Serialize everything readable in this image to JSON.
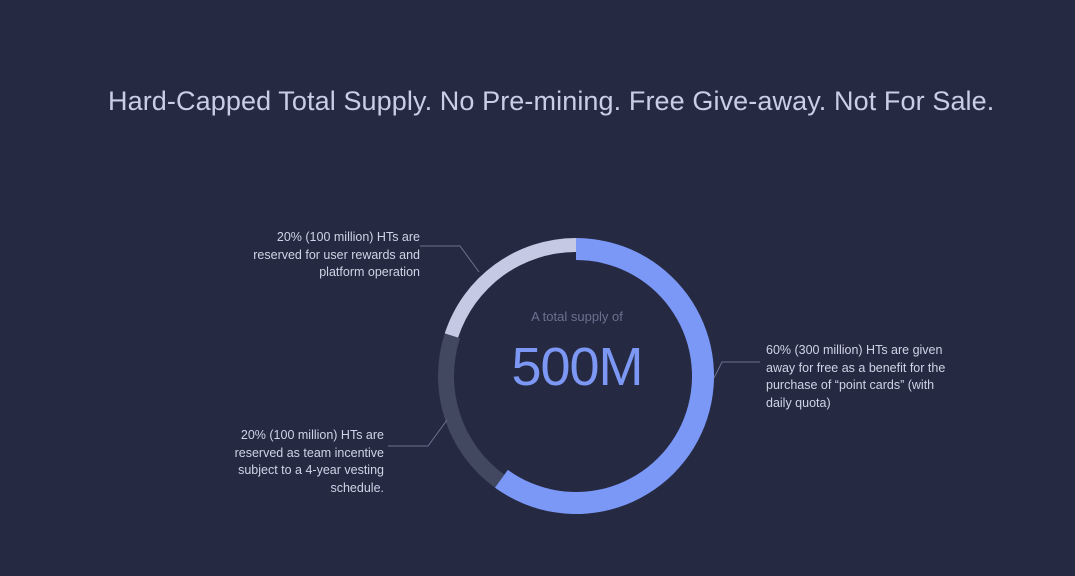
{
  "headline": "Hard-Capped Total Supply. No Pre-mining. Free Give-away. Not For Sale.",
  "center": {
    "label": "A total supply of",
    "value": "500M"
  },
  "chart_data": {
    "type": "pie",
    "donut": true,
    "slices": [
      {
        "value": 60,
        "color": "#7b98f6",
        "lines": [
          "60% (300 million) HTs are given",
          "away for free as a benefit for the",
          "purchase of “point cards” (with",
          "daily quota)"
        ]
      },
      {
        "value": 20,
        "color": "#414860",
        "lines": [
          "20% (100 million) HTs are",
          "reserved as team incentive",
          "subject to a 4-year vesting",
          "schedule."
        ]
      },
      {
        "value": 20,
        "color": "#c6c9e4",
        "lines": [
          "20% (100 million) HTs are",
          "reserved for user rewards and",
          "platform operation"
        ]
      }
    ]
  }
}
